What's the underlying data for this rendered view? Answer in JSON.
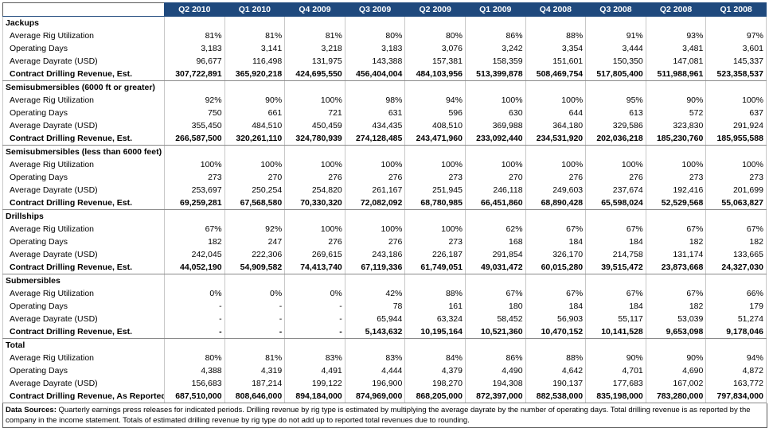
{
  "columns": [
    "Q2 2010",
    "Q1 2010",
    "Q4 2009",
    "Q3 2009",
    "Q2 2009",
    "Q1 2009",
    "Q4 2008",
    "Q3 2008",
    "Q2 2008",
    "Q1 2008"
  ],
  "sections": [
    {
      "title": "Jackups",
      "rows": [
        {
          "label": "Average Rig Utilization",
          "values": [
            "81%",
            "81%",
            "81%",
            "80%",
            "80%",
            "86%",
            "88%",
            "91%",
            "93%",
            "97%"
          ]
        },
        {
          "label": "Operating Days",
          "values": [
            "3,183",
            "3,141",
            "3,218",
            "3,183",
            "3,076",
            "3,242",
            "3,354",
            "3,444",
            "3,481",
            "3,601"
          ]
        },
        {
          "label": "Average Dayrate (USD)",
          "values": [
            "96,677",
            "116,498",
            "131,975",
            "143,388",
            "157,381",
            "158,359",
            "151,601",
            "150,350",
            "147,081",
            "145,337"
          ]
        },
        {
          "label": "Contract Drilling Revenue, Est.",
          "values": [
            "307,722,891",
            "365,920,218",
            "424,695,550",
            "456,404,004",
            "484,103,956",
            "513,399,878",
            "508,469,754",
            "517,805,400",
            "511,988,961",
            "523,358,537"
          ]
        }
      ]
    },
    {
      "title": "Semisubmersibles (6000 ft or greater)",
      "rows": [
        {
          "label": "Average Rig Utilization",
          "values": [
            "92%",
            "90%",
            "100%",
            "98%",
            "94%",
            "100%",
            "100%",
            "95%",
            "90%",
            "100%"
          ]
        },
        {
          "label": "Operating Days",
          "values": [
            "750",
            "661",
            "721",
            "631",
            "596",
            "630",
            "644",
            "613",
            "572",
            "637"
          ]
        },
        {
          "label": "Average Dayrate (USD)",
          "values": [
            "355,450",
            "484,510",
            "450,459",
            "434,435",
            "408,510",
            "369,988",
            "364,180",
            "329,586",
            "323,830",
            "291,924"
          ]
        },
        {
          "label": "Contract Drilling Revenue, Est.",
          "values": [
            "266,587,500",
            "320,261,110",
            "324,780,939",
            "274,128,485",
            "243,471,960",
            "233,092,440",
            "234,531,920",
            "202,036,218",
            "185,230,760",
            "185,955,588"
          ]
        }
      ]
    },
    {
      "title": "Semisubmersibles (less than 6000 feet)",
      "rows": [
        {
          "label": "Average Rig Utilization",
          "values": [
            "100%",
            "100%",
            "100%",
            "100%",
            "100%",
            "100%",
            "100%",
            "100%",
            "100%",
            "100%"
          ]
        },
        {
          "label": "Operating Days",
          "values": [
            "273",
            "270",
            "276",
            "276",
            "273",
            "270",
            "276",
            "276",
            "273",
            "273"
          ]
        },
        {
          "label": "Average Dayrate (USD)",
          "values": [
            "253,697",
            "250,254",
            "254,820",
            "261,167",
            "251,945",
            "246,118",
            "249,603",
            "237,674",
            "192,416",
            "201,699"
          ]
        },
        {
          "label": "Contract Drilling Revenue, Est.",
          "values": [
            "69,259,281",
            "67,568,580",
            "70,330,320",
            "72,082,092",
            "68,780,985",
            "66,451,860",
            "68,890,428",
            "65,598,024",
            "52,529,568",
            "55,063,827"
          ]
        }
      ]
    },
    {
      "title": "Drillships",
      "rows": [
        {
          "label": "Average Rig Utilization",
          "values": [
            "67%",
            "92%",
            "100%",
            "100%",
            "100%",
            "62%",
            "67%",
            "67%",
            "67%",
            "67%"
          ]
        },
        {
          "label": "Operating Days",
          "values": [
            "182",
            "247",
            "276",
            "276",
            "273",
            "168",
            "184",
            "184",
            "182",
            "182"
          ]
        },
        {
          "label": "Average Dayrate (USD)",
          "values": [
            "242,045",
            "222,306",
            "269,615",
            "243,186",
            "226,187",
            "291,854",
            "326,170",
            "214,758",
            "131,174",
            "133,665"
          ]
        },
        {
          "label": "Contract Drilling Revenue, Est.",
          "values": [
            "44,052,190",
            "54,909,582",
            "74,413,740",
            "67,119,336",
            "61,749,051",
            "49,031,472",
            "60,015,280",
            "39,515,472",
            "23,873,668",
            "24,327,030"
          ]
        }
      ]
    },
    {
      "title": "Submersibles",
      "rows": [
        {
          "label": "Average Rig Utilization",
          "values": [
            "0%",
            "0%",
            "0%",
            "42%",
            "88%",
            "67%",
            "67%",
            "67%",
            "67%",
            "66%"
          ]
        },
        {
          "label": "Operating Days",
          "values": [
            "-",
            "-",
            "-",
            "78",
            "161",
            "180",
            "184",
            "184",
            "182",
            "179"
          ]
        },
        {
          "label": "Average Dayrate (USD)",
          "values": [
            "-",
            "-",
            "-",
            "65,944",
            "63,324",
            "58,452",
            "56,903",
            "55,117",
            "53,039",
            "51,274"
          ]
        },
        {
          "label": "Contract Drilling Revenue, Est.",
          "values": [
            "-",
            "-",
            "-",
            "5,143,632",
            "10,195,164",
            "10,521,360",
            "10,470,152",
            "10,141,528",
            "9,653,098",
            "9,178,046"
          ]
        }
      ]
    },
    {
      "title": "Total",
      "rows": [
        {
          "label": "Average Rig Utilization",
          "values": [
            "80%",
            "81%",
            "83%",
            "83%",
            "84%",
            "86%",
            "88%",
            "90%",
            "90%",
            "94%"
          ]
        },
        {
          "label": "Operating Days",
          "values": [
            "4,388",
            "4,319",
            "4,491",
            "4,444",
            "4,379",
            "4,490",
            "4,642",
            "4,701",
            "4,690",
            "4,872"
          ]
        },
        {
          "label": "Average Dayrate (USD)",
          "values": [
            "156,683",
            "187,214",
            "199,122",
            "196,900",
            "198,270",
            "194,308",
            "190,137",
            "177,683",
            "167,002",
            "163,772"
          ]
        },
        {
          "label": "Contract Drilling Revenue, As Reported",
          "values": [
            "687,510,000",
            "808,646,000",
            "894,184,000",
            "874,969,000",
            "868,205,000",
            "872,397,000",
            "882,538,000",
            "835,198,000",
            "783,280,000",
            "797,834,000"
          ]
        }
      ]
    }
  ],
  "note": {
    "label": "Data Sources:",
    "text": " Quarterly earnings press releases for indicated periods.  Drilling revenue by rig type is estimated by multiplying the average dayrate by the number of operating days.  Total drilling revenue is as reported by the company in the income statement.  Totals of estimated drilling revenue by rig type do not add up to reported total revenues due to rounding."
  }
}
